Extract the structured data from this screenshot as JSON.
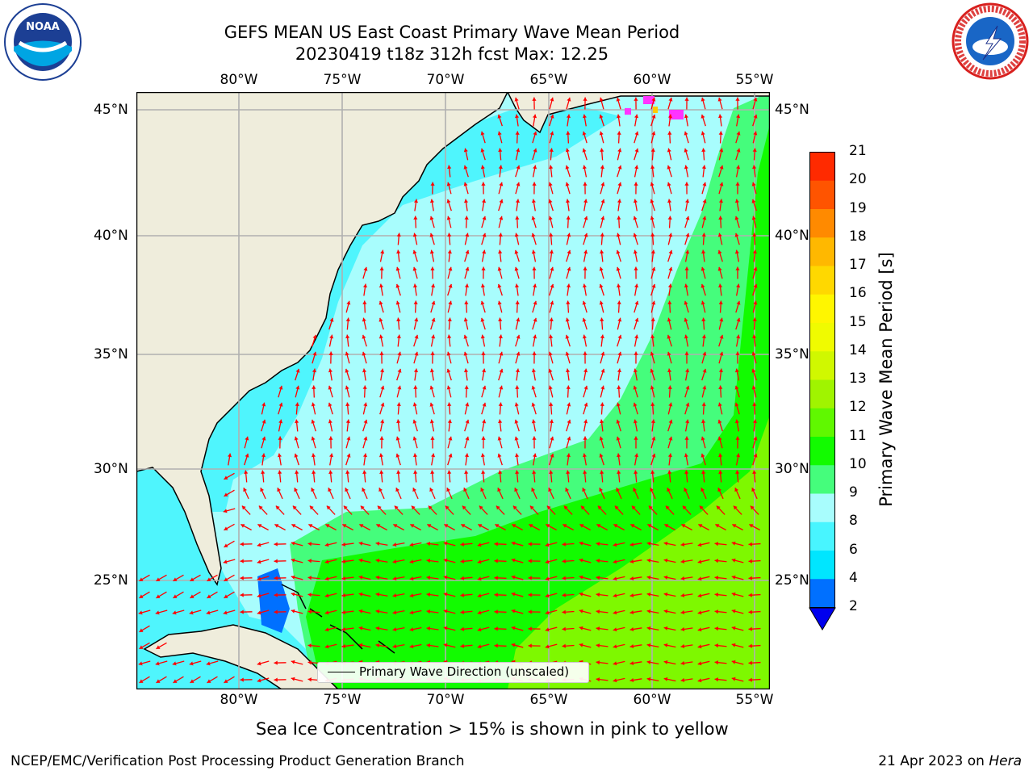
{
  "header": {
    "title_line1": "GEFS MEAN US East Coast Primary Wave Mean Period",
    "title_line2": "20230419 t18z 312h fcst   Max: 12.25"
  },
  "map": {
    "lon_labels": [
      "80°W",
      "75°W",
      "70°W",
      "65°W",
      "60°W",
      "55°W"
    ],
    "lat_labels": [
      "45°N",
      "40°N",
      "35°N",
      "30°N",
      "25°N"
    ],
    "legend_label": "Primary Wave Direction (unscaled)",
    "colors": {
      "land": "#efeddc",
      "ocean_light": "#a8fdfd",
      "ocean_cyan": "#4ff5fd",
      "ocean_green": "#45fd7c",
      "ocean_bright": "#12fb00",
      "arrow": "#ff0000"
    }
  },
  "colorbar": {
    "label": "Primary Wave Mean Period [s]",
    "ticks": [
      "2",
      "4",
      "6",
      "8",
      "9",
      "10",
      "11",
      "12",
      "13",
      "14",
      "15",
      "16",
      "17",
      "18",
      "19",
      "20",
      "21"
    ],
    "colors": [
      "#0070ff",
      "#00e6ff",
      "#48f5ff",
      "#a8fdfd",
      "#45fd7c",
      "#12fb00",
      "#60f800",
      "#a0f400",
      "#d0f800",
      "#f0fb00",
      "#fff600",
      "#ffd800",
      "#ffb800",
      "#ff8a00",
      "#ff5400",
      "#ff2a00"
    ],
    "under_color": "#0000ee"
  },
  "footer": {
    "ice_note": "Sea Ice Concentration > 15% is shown in pink to yellow",
    "credit": "NCEP/EMC/Verification Post Processing Product Generation Branch",
    "date": "21 Apr 2023 on",
    "machine": "Hera"
  },
  "logos": {
    "left_text": "NOAA",
    "right_text": "NATIONAL WEATHER SERVICE"
  }
}
